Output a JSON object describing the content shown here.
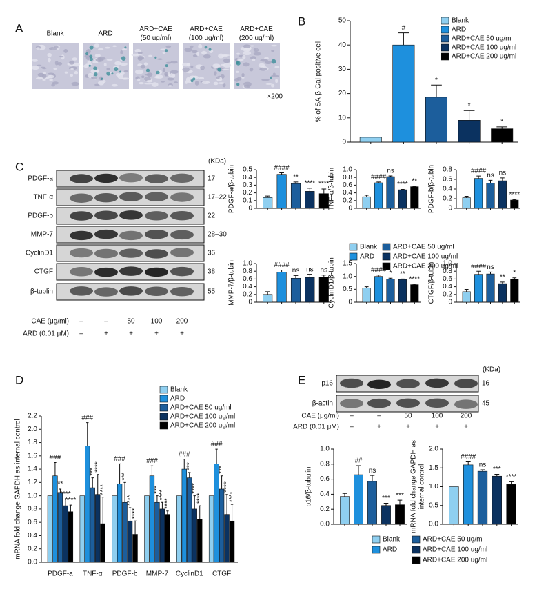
{
  "panel_labels": [
    "A",
    "B",
    "C",
    "D",
    "E"
  ],
  "legend": [
    {
      "name": "Blank",
      "color": "#8fcff0"
    },
    {
      "name": "ARD",
      "color": "#1e90dd"
    },
    {
      "name": "ARD+CAE 50 ug/ml",
      "color": "#1c5e9c"
    },
    {
      "name": "ARD+CAE 100 ug/ml",
      "color": "#0b3260"
    },
    {
      "name": "ARD+CAE 200 ug/ml",
      "color": "#000000"
    }
  ],
  "micrographs": {
    "labels": [
      [
        "Blank"
      ],
      [
        "ARD"
      ],
      [
        "ARD+CAE",
        "(50 ug/ml)"
      ],
      [
        "ARD+CAE",
        "(100 ug/ml)"
      ],
      [
        "ARD+CAE",
        "(200 ug/ml)"
      ]
    ],
    "magnification": "×200"
  },
  "blot_c": {
    "unit": "(KDa)",
    "rows": [
      {
        "name": "PDGF-a",
        "kda": "17"
      },
      {
        "name": "TNF-α",
        "kda": "17–22"
      },
      {
        "name": "PDGF-b",
        "kda": "22"
      },
      {
        "name": "MMP-7",
        "kda": "28–30"
      },
      {
        "name": "CyclinD1",
        "kda": "36"
      },
      {
        "name": "CTGF",
        "kda": "38"
      },
      {
        "name": "β-tublin",
        "kda": "55"
      }
    ],
    "treatments": [
      {
        "name": "CAE (μg/ml)",
        "levels": [
          "–",
          "–",
          "50",
          "100",
          "200"
        ]
      },
      {
        "name": "ARD (0.01 μM)",
        "levels": [
          "–",
          "+",
          "+",
          "+",
          "+"
        ]
      }
    ]
  },
  "blot_e": {
    "unit": "(KDa)",
    "rows": [
      {
        "name": "p16",
        "kda": "16"
      },
      {
        "name": "β-actin",
        "kda": "45"
      }
    ],
    "treatments": [
      {
        "name": "CAE (μg/ml)",
        "levels": [
          "–",
          "–",
          "50",
          "100",
          "200"
        ]
      },
      {
        "name": "ARD (0.01 μM)",
        "levels": [
          "–",
          "+",
          "+",
          "+",
          "+"
        ]
      }
    ]
  },
  "chart_data": [
    {
      "type": "bar",
      "ylabel": "% of SA-β-Gal positive cell",
      "ylim": [
        0,
        50
      ],
      "yticks": [
        0,
        10,
        20,
        30,
        40,
        50
      ],
      "values": [
        2,
        40,
        18.5,
        9,
        5.5
      ],
      "errors": [
        0,
        5,
        5,
        4,
        0.8
      ],
      "annotations": [
        null,
        "#",
        "*",
        "*",
        "*"
      ]
    },
    {
      "type": "bar",
      "ylabel": "PDGF-a/β-tubin",
      "ylim": [
        0,
        0.5
      ],
      "yticks": [
        0,
        0.1,
        0.2,
        0.3,
        0.4,
        0.5
      ],
      "values": [
        0.14,
        0.44,
        0.32,
        0.22,
        0.19
      ],
      "errors": [
        0.02,
        0.02,
        0.02,
        0.04,
        0.06
      ],
      "annotations": [
        null,
        "####",
        "**",
        "****",
        "****"
      ]
    },
    {
      "type": "bar",
      "ylabel": "TNF-α/β-tubin",
      "ylim": [
        0,
        1
      ],
      "yticks": [
        0,
        0.2,
        0.4,
        0.6,
        0.8,
        {
          "value": 1,
          "label": "1.0"
        }
      ],
      "values": [
        0.3,
        0.66,
        0.82,
        0.48,
        0.56
      ],
      "errors": [
        0.04,
        0.02,
        0.02,
        0.01,
        0.01
      ],
      "annotations": [
        null,
        "####",
        "ns",
        "****",
        "**"
      ]
    },
    {
      "type": "bar",
      "ylabel": "PDGF-b/β-tubin",
      "ylim": [
        0,
        0.8
      ],
      "yticks": [
        0,
        0.2,
        0.4,
        0.6,
        0.8
      ],
      "values": [
        0.22,
        0.62,
        0.52,
        0.57,
        0.17
      ],
      "errors": [
        0.03,
        0.05,
        0.06,
        0.06,
        0.01
      ],
      "annotations": [
        null,
        "####",
        "ns",
        "ns",
        "****"
      ]
    },
    {
      "type": "bar",
      "ylabel": "MMP-7/β-tubin",
      "ylim": [
        0,
        1
      ],
      "yticks": [
        0,
        0.2,
        0.4,
        0.6,
        0.8,
        {
          "value": 1,
          "label": "1.0"
        }
      ],
      "values": [
        0.2,
        0.78,
        0.62,
        0.64,
        0.65
      ],
      "errors": [
        0.07,
        0.05,
        0.07,
        0.08,
        0.05
      ],
      "annotations": [
        null,
        "####",
        "ns",
        "ns",
        "ns"
      ]
    },
    {
      "type": "bar",
      "ylabel": "CyclinD1/β-tubin",
      "ylim": [
        0,
        1.5
      ],
      "yticks": [
        0,
        0.5,
        {
          "value": 1,
          "label": "1.0"
        },
        1.5
      ],
      "values": [
        0.55,
        1.0,
        0.9,
        0.88,
        0.68
      ],
      "errors": [
        0.05,
        0.05,
        0.03,
        0.02,
        0.02
      ],
      "annotations": [
        null,
        "####",
        "*",
        "**",
        "****"
      ]
    },
    {
      "type": "bar",
      "ylabel": "CTGF/β-tubin",
      "ylim": [
        0,
        1
      ],
      "yticks": [
        0,
        0.2,
        0.4,
        0.6,
        0.8,
        {
          "value": 1,
          "label": "1.0"
        }
      ],
      "values": [
        0.27,
        0.72,
        0.73,
        0.48,
        0.6
      ],
      "errors": [
        0.06,
        0.08,
        0.05,
        0.04,
        0.03
      ],
      "annotations": [
        null,
        "####",
        "ns",
        "**",
        "*"
      ]
    },
    {
      "type": "grouped-bar",
      "ylabel": "mRNA fold change GAPDH as internal control",
      "ylim": [
        0,
        2.2
      ],
      "yticks": [
        {
          "value": 0,
          "label": "0.0"
        },
        0.2,
        0.4,
        0.6,
        0.8,
        {
          "value": 1,
          "label": "1.0"
        },
        1.2,
        1.4,
        1.6,
        1.8,
        {
          "value": 2,
          "label": "2.0"
        },
        2.2
      ],
      "categories": [
        "PDGF-a",
        "TNF-α",
        "PDGF-b",
        "MMP-7",
        "CyclinD1",
        "CTGF"
      ],
      "series": [
        {
          "values": [
            1,
            1,
            1,
            1,
            1,
            1
          ],
          "errors": [
            0,
            0,
            0,
            0,
            0,
            0
          ],
          "annotations": [
            null,
            null,
            null,
            null,
            null,
            null
          ]
        },
        {
          "values": [
            1.3,
            1.75,
            1.18,
            1.3,
            1.4,
            1.48
          ],
          "errors": [
            0.2,
            0.35,
            0.3,
            0.15,
            0.15,
            0.22
          ],
          "annotations": [
            "###",
            "###",
            "###",
            "###",
            "###",
            "###"
          ]
        },
        {
          "values": [
            1.05,
            1.12,
            0.9,
            0.9,
            1.27,
            1.1
          ],
          "errors": [
            0.05,
            0.15,
            0.3,
            0.1,
            0.08,
            0.2
          ],
          "annotations": [
            "**",
            "***",
            "***",
            "***",
            "***",
            "***"
          ]
        },
        {
          "values": [
            0.85,
            1.02,
            0.62,
            0.8,
            0.8,
            0.72
          ],
          "errors": [
            0.1,
            0.3,
            0.2,
            0.1,
            0.2,
            0.3
          ],
          "annotations": [
            "****",
            "****",
            "****",
            "****",
            "****",
            "****"
          ]
        },
        {
          "values": [
            0.76,
            0.58,
            0.42,
            0.72,
            0.65,
            0.62
          ],
          "errors": [
            0.1,
            0.4,
            0.2,
            0.05,
            0.2,
            0.25
          ],
          "annotations": [
            "****",
            "****",
            "****",
            "****",
            "****",
            "****"
          ]
        }
      ]
    },
    {
      "type": "bar",
      "ylabel": "p16/β-tubulin",
      "ylim": [
        0,
        1
      ],
      "yticks": [
        {
          "value": 0,
          "label": "0.0"
        },
        0.2,
        0.4,
        0.6,
        0.8,
        {
          "value": 1,
          "label": "1.0"
        }
      ],
      "values": [
        0.37,
        0.66,
        0.57,
        0.25,
        0.26
      ],
      "errors": [
        0.04,
        0.12,
        0.08,
        0.03,
        0.06
      ],
      "annotations": [
        null,
        "##",
        "ns",
        "***",
        "***"
      ]
    },
    {
      "type": "bar",
      "ylabel": [
        "mRNA fold change GAPDH as",
        "internal control"
      ],
      "ylim": [
        0,
        2
      ],
      "yticks": [
        {
          "value": 0,
          "label": "0.0"
        },
        0.5,
        {
          "value": 1,
          "label": "1.0"
        },
        1.5,
        {
          "value": 2,
          "label": "2.0"
        }
      ],
      "values": [
        1.0,
        1.58,
        1.41,
        1.28,
        1.06
      ],
      "errors": [
        0,
        0.08,
        0.04,
        0.05,
        0.07
      ],
      "annotations": [
        null,
        "####",
        "ns",
        "***",
        "****"
      ]
    }
  ]
}
